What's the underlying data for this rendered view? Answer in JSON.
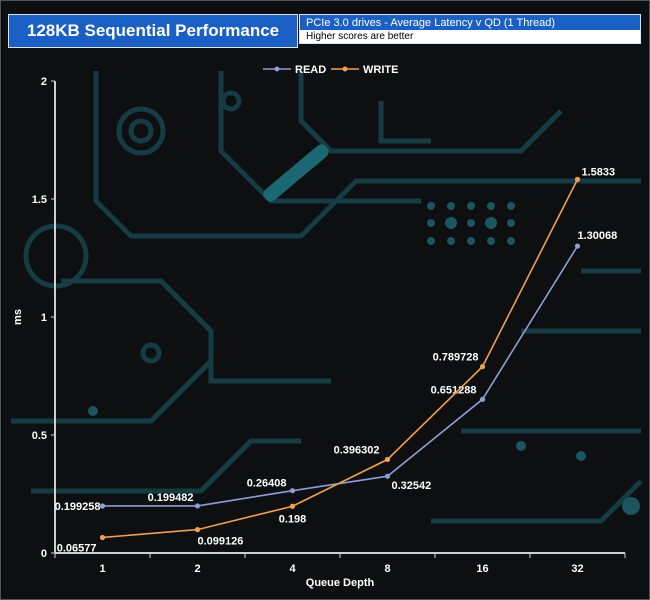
{
  "header": {
    "title": "128KB Sequential Performance",
    "subtitle": "PCIe 3.0 drives - Average Latency v QD (1 Thread)",
    "note": "Higher scores are better"
  },
  "chart_data": {
    "type": "line",
    "categories": [
      "1",
      "2",
      "4",
      "8",
      "16",
      "32"
    ],
    "xlabel": "Queue Depth",
    "ylabel": "ms",
    "ylim": [
      0,
      2
    ],
    "yticks": [
      "0",
      "0.5",
      "1",
      "1.5",
      "2"
    ],
    "legend_position": "top-center",
    "grid": false,
    "series": [
      {
        "name": "READ",
        "color": "#8c9fd8",
        "values": [
          0.199258,
          0.199482,
          0.26408,
          0.32542,
          0.651288,
          1.30068
        ],
        "labels": [
          "0.199258",
          "0.199482",
          "0.26408",
          "0.32542",
          "0.651288",
          "1.30068"
        ]
      },
      {
        "name": "WRITE",
        "color": "#f0a050",
        "values": [
          0.06577,
          0.099126,
          0.198,
          0.396302,
          0.789728,
          1.5833
        ],
        "labels": [
          "0.06577",
          "0.099126",
          "0.198",
          "0.396302",
          "0.789728",
          "1.5833"
        ]
      }
    ]
  }
}
